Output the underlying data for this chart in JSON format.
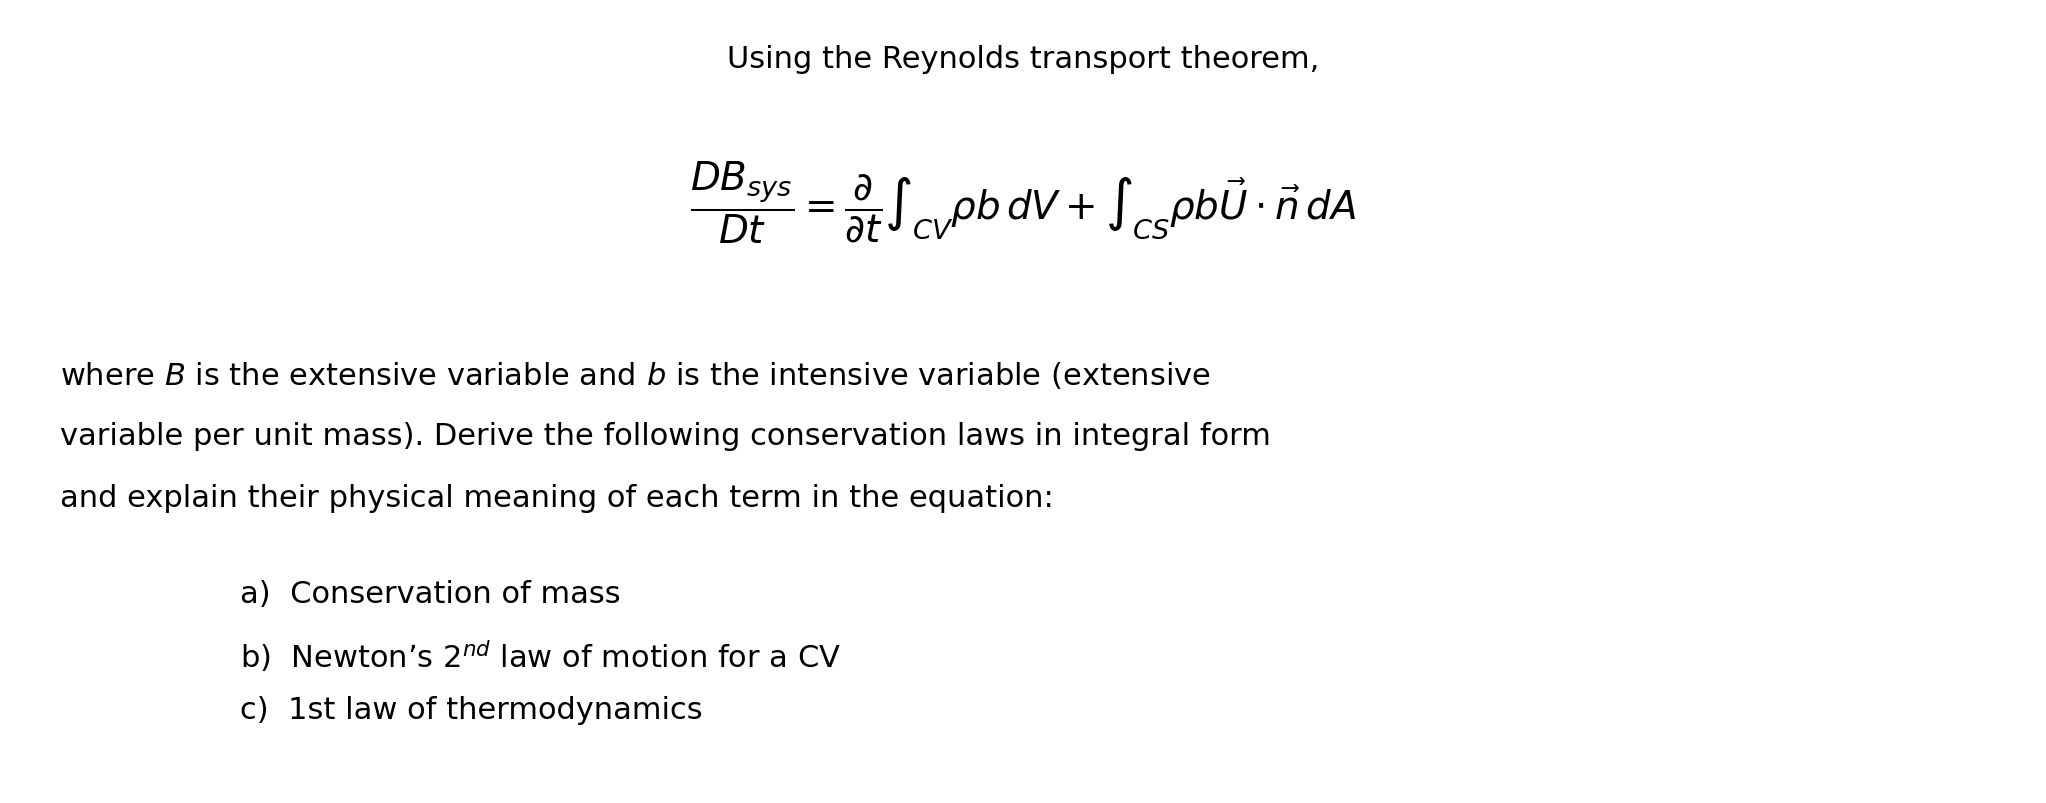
{
  "background_color": "#ffffff",
  "title_text": "Using the Reynolds transport theorem,",
  "title_fontsize": 22,
  "equation": "$\\dfrac{DB_{sys}}{Dt} = \\dfrac{\\partial}{\\partial t}\\int_{CV} \\rho b\\, dV + \\int_{CS} \\rho b\\vec{U} \\cdot \\vec{n}\\, dA$",
  "equation_fontsize": 28,
  "body_lines": [
    "where $B$ is the extensive variable and $b$ is the intensive variable (extensive",
    "variable per unit mass). Derive the following conservation laws in integral form",
    "and explain their physical meaning of each term in the equation:"
  ],
  "body_fontsize": 22,
  "list_items": [
    "a)  Conservation of mass",
    "b)  Newton’s 2$^{nd}$ law of motion for a CV",
    "c)  1st law of thermodynamics"
  ],
  "list_fontsize": 22,
  "text_color": "#000000",
  "figwidth": 20.46,
  "figheight": 8.04,
  "dpi": 100
}
